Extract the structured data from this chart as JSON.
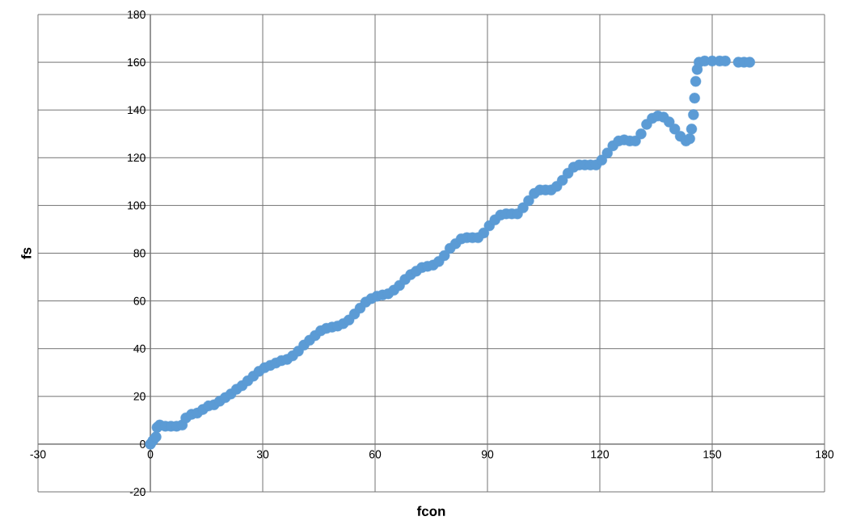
{
  "chart_data": {
    "type": "scatter",
    "xlabel": "fcon",
    "ylabel": "fs",
    "x": [
      0,
      0.7,
      1.5,
      1.8,
      2.5,
      4,
      5.5,
      7,
      8.5,
      9.5,
      11,
      12.5,
      14,
      15.5,
      17,
      18.5,
      20,
      21.5,
      23,
      24.5,
      26,
      27.5,
      29,
      30.5,
      32,
      33.5,
      35,
      36.5,
      38,
      39.5,
      41,
      42.5,
      44,
      45.5,
      47,
      48.5,
      50,
      51.5,
      53,
      54.5,
      56,
      57.5,
      59,
      60.5,
      62,
      63.5,
      65,
      66.5,
      68,
      69.5,
      71,
      72.5,
      74,
      75.5,
      77,
      78.5,
      80,
      81.5,
      83,
      84.5,
      86,
      87.5,
      89,
      90.5,
      92,
      93.5,
      95,
      96.5,
      98,
      99.5,
      101,
      102.5,
      104,
      105.5,
      107,
      108.5,
      110,
      111.5,
      113,
      114.5,
      116,
      117.5,
      119,
      120.5,
      122,
      123.5,
      125,
      126.5,
      128,
      129.5,
      131,
      132.5,
      134,
      135.5,
      137,
      138.5,
      140,
      141.5,
      143,
      144,
      144.5,
      145,
      145.3,
      145.6,
      146,
      146.5,
      148,
      150,
      152,
      153.5,
      157,
      158.5,
      160
    ],
    "series": [
      {
        "color": "#5b9bd5",
        "values": [
          0,
          1.5,
          3,
          7,
          8,
          7.5,
          7.5,
          7.5,
          8,
          11,
          12.5,
          13,
          14.5,
          16,
          16.5,
          18,
          19.5,
          21,
          23,
          24.5,
          26.5,
          28.5,
          30.5,
          32,
          33,
          34,
          35,
          35.5,
          37,
          39,
          41.5,
          43.5,
          45.5,
          47.5,
          48.5,
          49,
          49.5,
          50.5,
          52,
          54.5,
          57,
          59.5,
          61,
          62,
          62.5,
          63,
          64.5,
          66.5,
          69,
          71,
          72.5,
          74,
          74.5,
          75,
          76.5,
          79,
          82,
          84,
          86,
          86.5,
          86.5,
          86.5,
          88.5,
          91.5,
          94,
          96,
          96.5,
          96.5,
          96.5,
          99,
          102,
          105,
          106.5,
          106.5,
          106.5,
          108,
          110.5,
          113.5,
          116,
          117,
          117,
          117,
          117,
          119,
          122,
          125,
          127,
          127.5,
          127,
          127,
          130,
          134,
          136.5,
          137.5,
          137,
          135,
          132,
          129,
          127,
          128,
          132,
          138,
          145,
          152,
          157,
          160,
          160.5,
          160.5,
          160.5,
          160.5,
          160,
          160,
          160
        ]
      }
    ],
    "marker": "circle",
    "grid": true,
    "xlim": [
      -30,
      180
    ],
    "ylim": [
      -20,
      180
    ],
    "xticks": [
      -30,
      0,
      30,
      60,
      90,
      120,
      150,
      180
    ],
    "yticks": [
      -20,
      0,
      20,
      40,
      60,
      80,
      100,
      120,
      140,
      160,
      180
    ]
  }
}
